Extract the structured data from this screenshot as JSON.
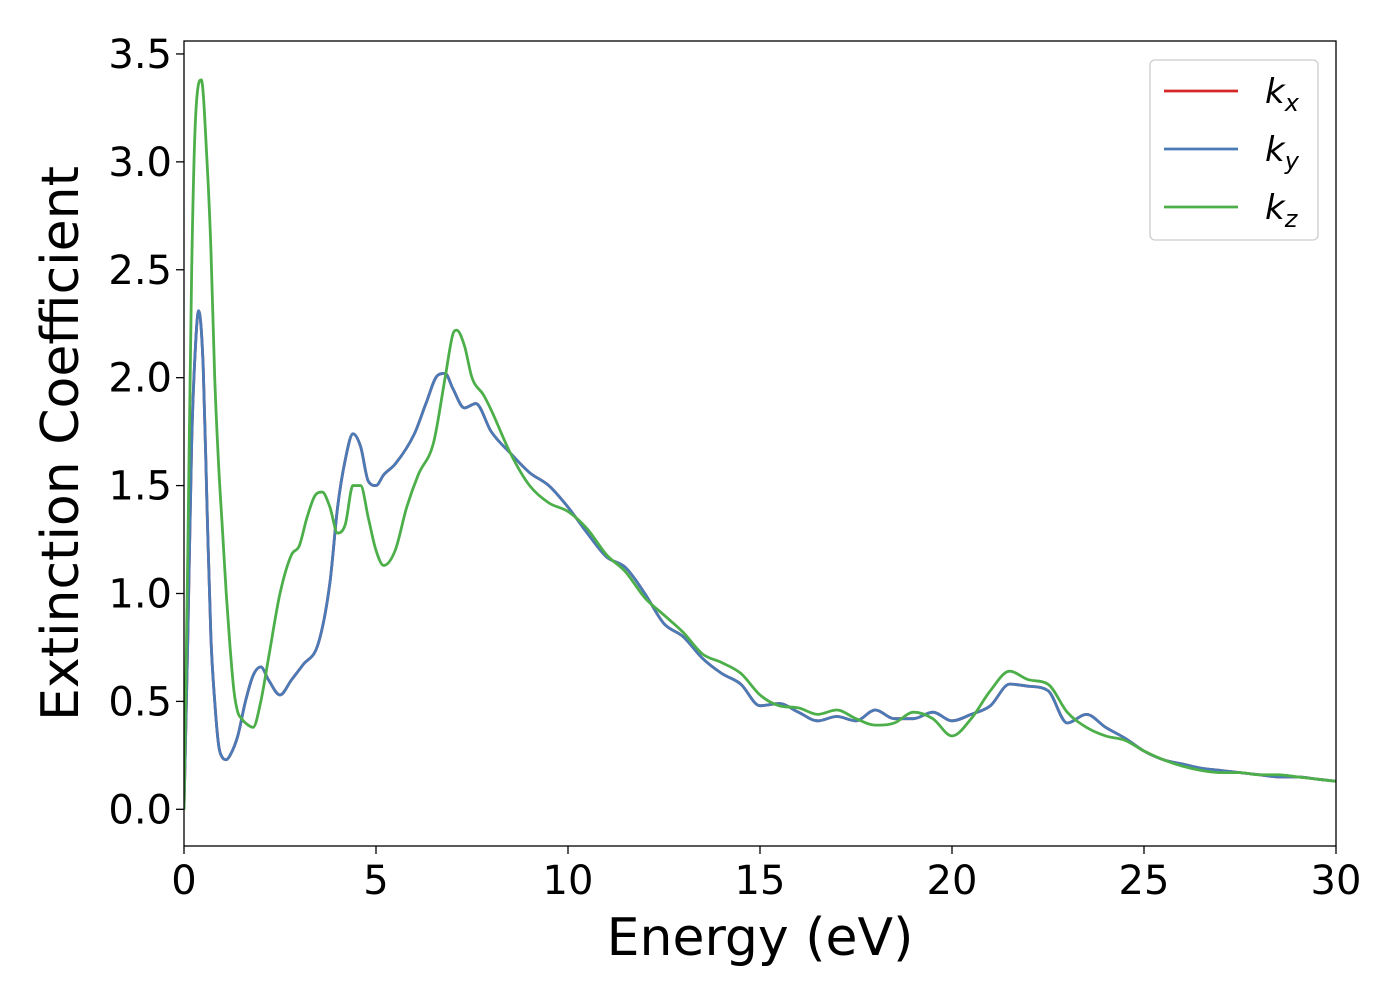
{
  "chart_data": {
    "type": "line",
    "title": "",
    "xlabel": "Energy (eV)",
    "ylabel": "Extinction Coefficient",
    "xlim": [
      0,
      30
    ],
    "ylim": [
      -0.17,
      3.56
    ],
    "xticks": [
      0,
      5,
      10,
      15,
      20,
      25,
      30
    ],
    "xtick_labels": [
      "0",
      "5",
      "10",
      "15",
      "20",
      "25",
      "30"
    ],
    "yticks": [
      0.0,
      0.5,
      1.0,
      1.5,
      2.0,
      2.5,
      3.0,
      3.5
    ],
    "ytick_labels": [
      "0.0",
      "0.5",
      "1.0",
      "1.5",
      "2.0",
      "2.5",
      "3.0",
      "3.5"
    ],
    "grid": false,
    "legend_position": "top-right",
    "series": [
      {
        "name": "k",
        "subscript": "x",
        "color": "#d62728",
        "x": [
          0,
          0.1,
          0.2,
          0.3,
          0.38,
          0.5,
          0.6,
          0.7,
          0.8,
          0.9,
          1.0,
          1.1,
          1.2,
          1.4,
          1.6,
          1.8,
          2.0,
          2.2,
          2.5,
          2.8,
          3.1,
          3.5,
          3.8,
          4.0,
          4.2,
          4.4,
          4.6,
          4.8,
          5.0,
          5.2,
          5.5,
          6.0,
          6.3,
          6.6,
          6.8,
          7.0,
          7.3,
          7.6,
          8.0,
          8.5,
          9.0,
          9.5,
          10.0,
          10.5,
          11.0,
          11.5,
          12.0,
          12.5,
          13.0,
          13.5,
          14.0,
          14.5,
          15.0,
          15.5,
          16.0,
          16.5,
          17.0,
          17.5,
          18.0,
          18.5,
          19.0,
          19.5,
          20.0,
          20.5,
          21.0,
          21.5,
          22.0,
          22.5,
          23.0,
          23.5,
          24.0,
          24.5,
          25.0,
          25.5,
          26.0,
          26.5,
          27.0,
          27.5,
          28.0,
          28.5,
          29.0,
          29.5,
          30.0
        ],
        "values": [
          0.0,
          0.8,
          1.7,
          2.15,
          2.31,
          2.05,
          1.4,
          0.8,
          0.5,
          0.3,
          0.24,
          0.23,
          0.25,
          0.34,
          0.5,
          0.62,
          0.66,
          0.6,
          0.53,
          0.6,
          0.67,
          0.77,
          1.05,
          1.4,
          1.62,
          1.74,
          1.68,
          1.52,
          1.5,
          1.55,
          1.6,
          1.74,
          1.88,
          2.01,
          2.02,
          1.95,
          1.86,
          1.88,
          1.75,
          1.65,
          1.56,
          1.5,
          1.4,
          1.28,
          1.17,
          1.12,
          1.0,
          0.86,
          0.8,
          0.7,
          0.63,
          0.58,
          0.48,
          0.49,
          0.45,
          0.41,
          0.43,
          0.41,
          0.46,
          0.42,
          0.42,
          0.45,
          0.41,
          0.44,
          0.48,
          0.58,
          0.57,
          0.55,
          0.4,
          0.44,
          0.38,
          0.33,
          0.27,
          0.23,
          0.21,
          0.19,
          0.18,
          0.17,
          0.16,
          0.15,
          0.15,
          0.14,
          0.13
        ]
      },
      {
        "name": "k",
        "subscript": "y",
        "color": "#4a7bb7",
        "x": [
          0,
          0.1,
          0.2,
          0.3,
          0.38,
          0.5,
          0.6,
          0.7,
          0.8,
          0.9,
          1.0,
          1.1,
          1.2,
          1.4,
          1.6,
          1.8,
          2.0,
          2.2,
          2.5,
          2.8,
          3.1,
          3.5,
          3.8,
          4.0,
          4.2,
          4.4,
          4.6,
          4.8,
          5.0,
          5.2,
          5.5,
          6.0,
          6.3,
          6.6,
          6.8,
          7.0,
          7.3,
          7.6,
          8.0,
          8.5,
          9.0,
          9.5,
          10.0,
          10.5,
          11.0,
          11.5,
          12.0,
          12.5,
          13.0,
          13.5,
          14.0,
          14.5,
          15.0,
          15.5,
          16.0,
          16.5,
          17.0,
          17.5,
          18.0,
          18.5,
          19.0,
          19.5,
          20.0,
          20.5,
          21.0,
          21.5,
          22.0,
          22.5,
          23.0,
          23.5,
          24.0,
          24.5,
          25.0,
          25.5,
          26.0,
          26.5,
          27.0,
          27.5,
          28.0,
          28.5,
          29.0,
          29.5,
          30.0
        ],
        "values": [
          0.0,
          0.8,
          1.7,
          2.15,
          2.31,
          2.05,
          1.4,
          0.8,
          0.5,
          0.3,
          0.24,
          0.23,
          0.25,
          0.34,
          0.5,
          0.62,
          0.66,
          0.6,
          0.53,
          0.6,
          0.67,
          0.77,
          1.05,
          1.4,
          1.62,
          1.74,
          1.68,
          1.52,
          1.5,
          1.55,
          1.6,
          1.74,
          1.88,
          2.01,
          2.02,
          1.95,
          1.86,
          1.88,
          1.75,
          1.65,
          1.56,
          1.5,
          1.4,
          1.28,
          1.17,
          1.12,
          1.0,
          0.86,
          0.8,
          0.7,
          0.63,
          0.58,
          0.48,
          0.49,
          0.45,
          0.41,
          0.43,
          0.41,
          0.46,
          0.42,
          0.42,
          0.45,
          0.41,
          0.44,
          0.48,
          0.58,
          0.57,
          0.55,
          0.4,
          0.44,
          0.38,
          0.33,
          0.27,
          0.23,
          0.21,
          0.19,
          0.18,
          0.17,
          0.16,
          0.15,
          0.15,
          0.14,
          0.13
        ]
      },
      {
        "name": "k",
        "subscript": "z",
        "color": "#4daf4a",
        "x": [
          0,
          0.1,
          0.2,
          0.3,
          0.45,
          0.6,
          0.7,
          0.8,
          0.9,
          1.0,
          1.1,
          1.2,
          1.3,
          1.4,
          1.5,
          1.6,
          1.8,
          2.0,
          2.2,
          2.5,
          2.8,
          3.0,
          3.2,
          3.4,
          3.6,
          3.8,
          4.0,
          4.2,
          4.4,
          4.6,
          4.8,
          5.0,
          5.2,
          5.5,
          5.8,
          6.1,
          6.5,
          6.8,
          7.0,
          7.1,
          7.3,
          7.5,
          7.8,
          8.0,
          8.5,
          9.0,
          9.5,
          10.0,
          10.5,
          11.0,
          11.5,
          12.0,
          12.5,
          13.0,
          13.5,
          14.0,
          14.5,
          15.0,
          15.5,
          16.0,
          16.5,
          17.0,
          17.5,
          18.0,
          18.5,
          19.0,
          19.5,
          20.0,
          20.5,
          21.0,
          21.5,
          22.0,
          22.5,
          23.0,
          23.5,
          24.0,
          24.5,
          25.0,
          25.5,
          26.0,
          26.5,
          27.0,
          27.5,
          28.0,
          28.5,
          29.0,
          29.5,
          30.0
        ],
        "values": [
          0.0,
          1.2,
          2.5,
          3.2,
          3.38,
          3.0,
          2.6,
          2.0,
          1.6,
          1.3,
          1.0,
          0.75,
          0.55,
          0.45,
          0.42,
          0.4,
          0.38,
          0.5,
          0.7,
          1.0,
          1.18,
          1.22,
          1.35,
          1.45,
          1.47,
          1.4,
          1.28,
          1.32,
          1.5,
          1.5,
          1.35,
          1.2,
          1.13,
          1.2,
          1.4,
          1.55,
          1.7,
          2.0,
          2.2,
          2.22,
          2.15,
          2.0,
          1.92,
          1.85,
          1.65,
          1.5,
          1.42,
          1.38,
          1.3,
          1.18,
          1.1,
          0.98,
          0.9,
          0.82,
          0.72,
          0.68,
          0.63,
          0.53,
          0.48,
          0.47,
          0.44,
          0.46,
          0.42,
          0.39,
          0.4,
          0.45,
          0.42,
          0.34,
          0.42,
          0.55,
          0.64,
          0.6,
          0.58,
          0.45,
          0.38,
          0.34,
          0.32,
          0.27,
          0.23,
          0.2,
          0.18,
          0.17,
          0.17,
          0.16,
          0.16,
          0.15,
          0.14,
          0.13
        ]
      }
    ]
  }
}
